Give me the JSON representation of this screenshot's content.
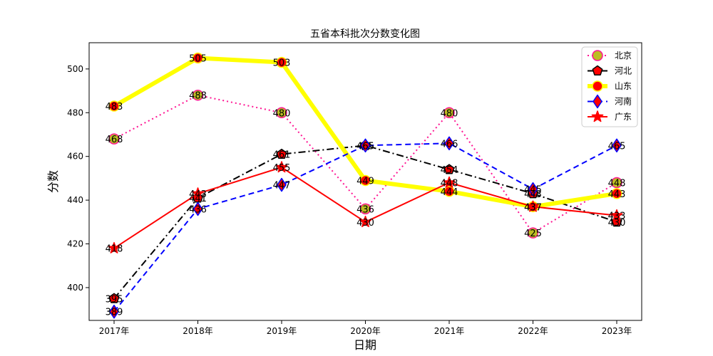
{
  "chart_data": {
    "type": "line",
    "title": "五省本科批次分数变化图",
    "xlabel": "日期",
    "ylabel": "分数",
    "categories": [
      "2017年",
      "2018年",
      "2019年",
      "2020年",
      "2021年",
      "2022年",
      "2023年"
    ],
    "ylim": [
      385,
      512
    ],
    "yticks": [
      400,
      420,
      440,
      460,
      480,
      500
    ],
    "legend_position": "top-right",
    "grid": false,
    "series": [
      {
        "name": "北京",
        "values": [
          468,
          488,
          480,
          436,
          480,
          425,
          448
        ],
        "color": "#ff1493",
        "marker_fill": "#bcbd22",
        "marker_edge": "#ff1493",
        "marker": "circle",
        "dash": "dotted"
      },
      {
        "name": "河北",
        "values": [
          395,
          441,
          461,
          465,
          454,
          443,
          430
        ],
        "color": "#000000",
        "marker_fill": "#ff0000",
        "marker_edge": "#000000",
        "marker": "pentagon",
        "dash": "dashdot"
      },
      {
        "name": "山东",
        "values": [
          483,
          505,
          503,
          449,
          444,
          437,
          443
        ],
        "color": "#ffff00",
        "marker_fill": "#ff0000",
        "marker_edge": "#ffff00",
        "marker": "circle",
        "dash": "solid"
      },
      {
        "name": "河南",
        "values": [
          389,
          436,
          447,
          465,
          466,
          445,
          465
        ],
        "color": "#0000ff",
        "marker_fill": "#ff0000",
        "marker_edge": "#0000ff",
        "marker": "diamond",
        "dash": "dashed"
      },
      {
        "name": "广东",
        "values": [
          418,
          443,
          455,
          430,
          448,
          437,
          433
        ],
        "color": "#ff0000",
        "marker_fill": "#ff0000",
        "marker_edge": "#ff0000",
        "marker": "star",
        "dash": "solid"
      }
    ]
  }
}
